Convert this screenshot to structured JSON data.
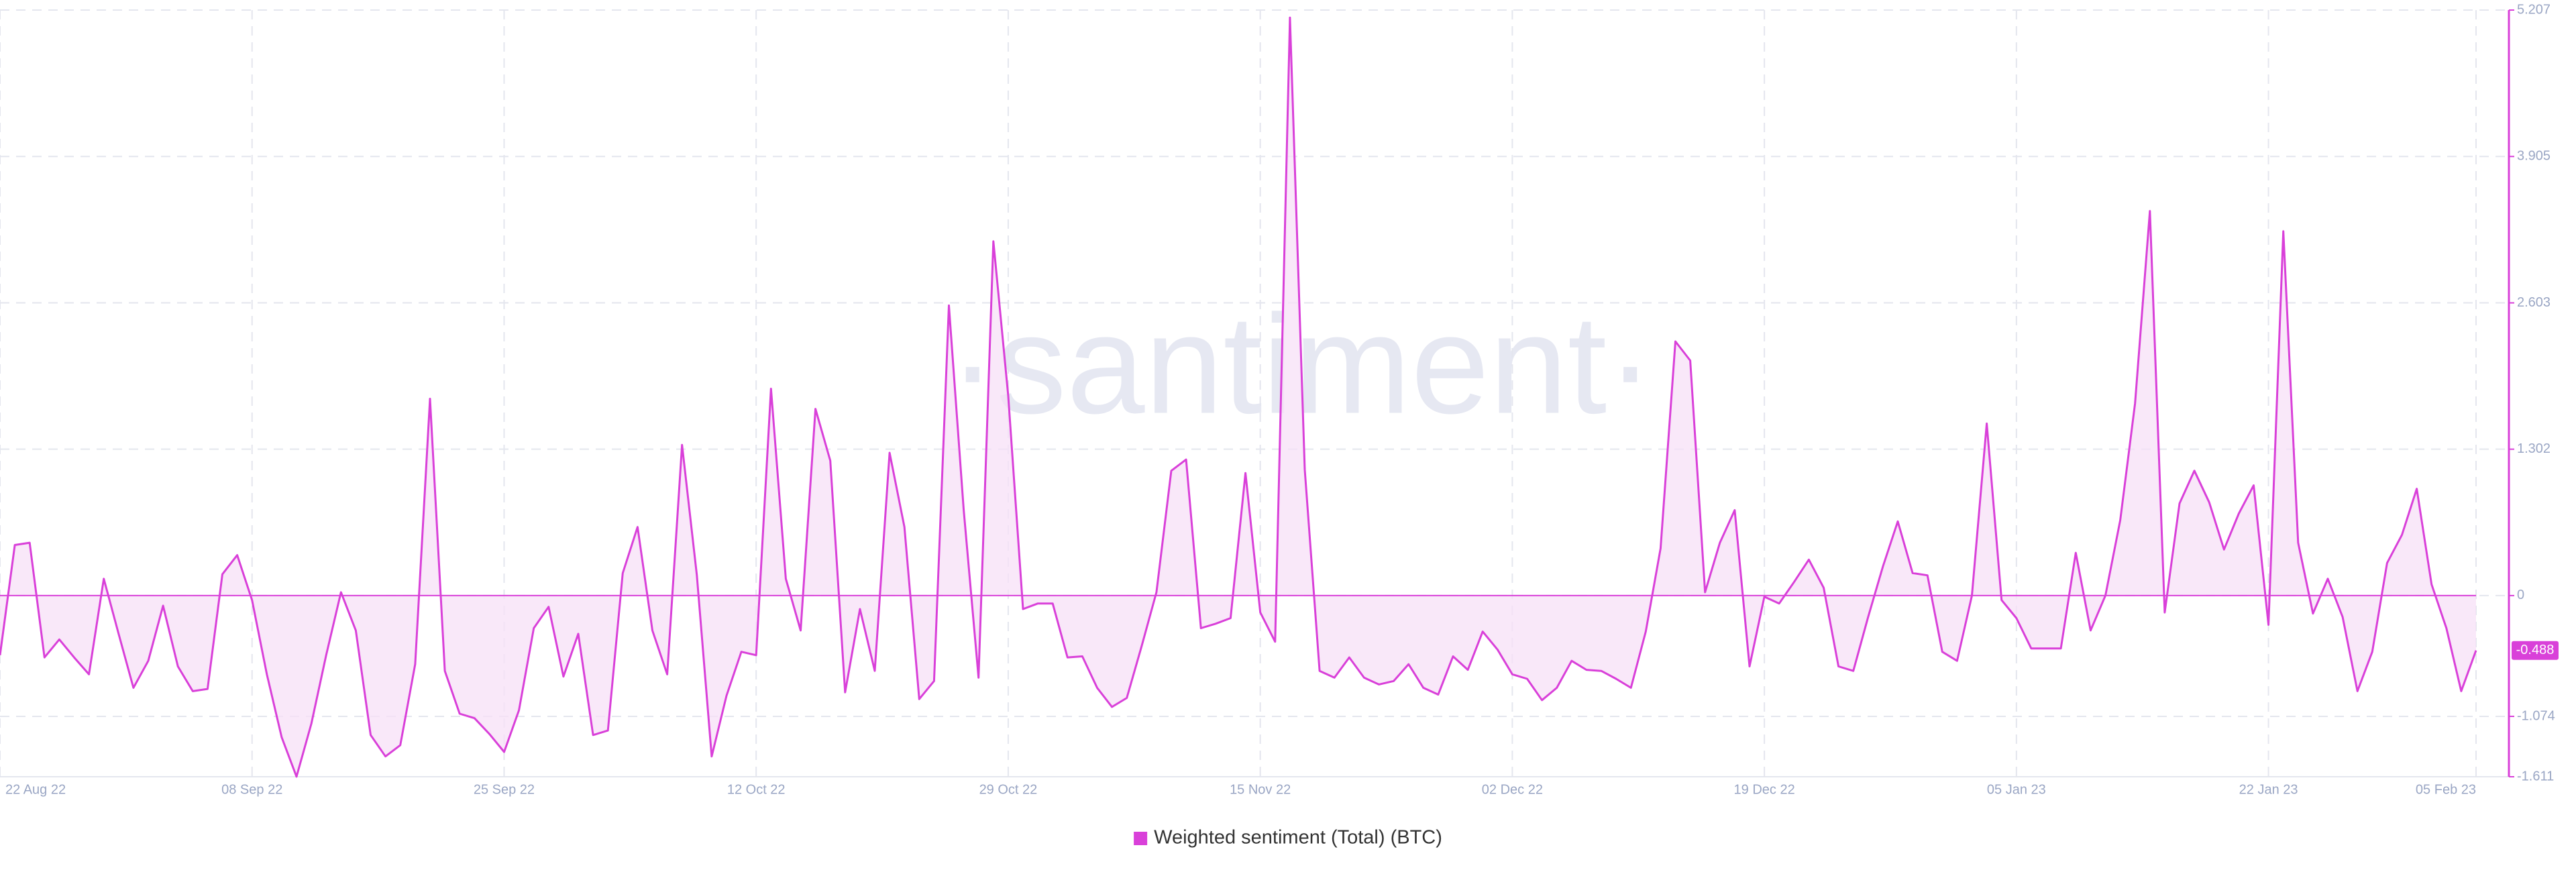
{
  "chart_data": {
    "type": "line",
    "watermark": "·santiment·",
    "legend_position": "bottom",
    "x": [
      "2022-08-22",
      "2022-08-23",
      "2022-08-24",
      "2022-08-25",
      "2022-08-26",
      "2022-08-27",
      "2022-08-28",
      "2022-08-29",
      "2022-08-30",
      "2022-08-31",
      "2022-09-01",
      "2022-09-02",
      "2022-09-03",
      "2022-09-04",
      "2022-09-05",
      "2022-09-06",
      "2022-09-07",
      "2022-09-08",
      "2022-09-09",
      "2022-09-10",
      "2022-09-11",
      "2022-09-12",
      "2022-09-13",
      "2022-09-14",
      "2022-09-15",
      "2022-09-16",
      "2022-09-17",
      "2022-09-18",
      "2022-09-19",
      "2022-09-20",
      "2022-09-21",
      "2022-09-22",
      "2022-09-23",
      "2022-09-24",
      "2022-09-25",
      "2022-09-26",
      "2022-09-27",
      "2022-09-28",
      "2022-09-29",
      "2022-09-30",
      "2022-10-01",
      "2022-10-02",
      "2022-10-03",
      "2022-10-04",
      "2022-10-05",
      "2022-10-06",
      "2022-10-07",
      "2022-10-08",
      "2022-10-09",
      "2022-10-10",
      "2022-10-11",
      "2022-10-12",
      "2022-10-13",
      "2022-10-14",
      "2022-10-15",
      "2022-10-16",
      "2022-10-17",
      "2022-10-18",
      "2022-10-19",
      "2022-10-20",
      "2022-10-21",
      "2022-10-22",
      "2022-10-23",
      "2022-10-24",
      "2022-10-25",
      "2022-10-26",
      "2022-10-27",
      "2022-10-28",
      "2022-10-29",
      "2022-10-30",
      "2022-10-31",
      "2022-11-01",
      "2022-11-02",
      "2022-11-03",
      "2022-11-04",
      "2022-11-05",
      "2022-11-06",
      "2022-11-07",
      "2022-11-08",
      "2022-11-09",
      "2022-11-10",
      "2022-11-11",
      "2022-11-12",
      "2022-11-13",
      "2022-11-14",
      "2022-11-15",
      "2022-11-16",
      "2022-11-17",
      "2022-11-18",
      "2022-11-19",
      "2022-11-20",
      "2022-11-21",
      "2022-11-22",
      "2022-11-23",
      "2022-11-24",
      "2022-11-25",
      "2022-11-26",
      "2022-11-27",
      "2022-11-28",
      "2022-11-29",
      "2022-11-30",
      "2022-12-01",
      "2022-12-02",
      "2022-12-03",
      "2022-12-04",
      "2022-12-05",
      "2022-12-06",
      "2022-12-07",
      "2022-12-08",
      "2022-12-09",
      "2022-12-10",
      "2022-12-11",
      "2022-12-12",
      "2022-12-13",
      "2022-12-14",
      "2022-12-15",
      "2022-12-16",
      "2022-12-17",
      "2022-12-18",
      "2022-12-19",
      "2022-12-20",
      "2022-12-21",
      "2022-12-22",
      "2022-12-23",
      "2022-12-24",
      "2022-12-25",
      "2022-12-26",
      "2022-12-27",
      "2022-12-28",
      "2022-12-29",
      "2022-12-30",
      "2022-12-31",
      "2023-01-01",
      "2023-01-02",
      "2023-01-03",
      "2023-01-04",
      "2023-01-05",
      "2023-01-06",
      "2023-01-07",
      "2023-01-08",
      "2023-01-09",
      "2023-01-10",
      "2023-01-11",
      "2023-01-12",
      "2023-01-13",
      "2023-01-14",
      "2023-01-15",
      "2023-01-16",
      "2023-01-17",
      "2023-01-18",
      "2023-01-19",
      "2023-01-20",
      "2023-01-21",
      "2023-01-22",
      "2023-01-23",
      "2023-01-24",
      "2023-01-25",
      "2023-01-26",
      "2023-01-27",
      "2023-01-28",
      "2023-01-29",
      "2023-01-30",
      "2023-01-31",
      "2023-02-01",
      "2023-02-02",
      "2023-02-03",
      "2023-02-04",
      "2023-02-05"
    ],
    "series": [
      {
        "name": "Weighted sentiment (Total) (BTC)",
        "color": "#d940d9",
        "fill": "#f7e0f7",
        "values": [
          -0.53,
          0.45,
          0.47,
          -0.55,
          -0.39,
          -0.55,
          -0.7,
          0.15,
          -0.34,
          -0.82,
          -0.58,
          -0.09,
          -0.63,
          -0.85,
          -0.83,
          0.19,
          0.36,
          -0.04,
          -0.7,
          -1.26,
          -1.61,
          -1.14,
          -0.53,
          0.03,
          -0.31,
          -1.24,
          -1.43,
          -1.33,
          -0.61,
          1.75,
          -0.67,
          -1.05,
          -1.09,
          -1.23,
          -1.39,
          -1.02,
          -0.29,
          -0.1,
          -0.72,
          -0.34,
          -1.24,
          -1.2,
          0.2,
          0.61,
          -0.31,
          -0.7,
          1.34,
          0.18,
          -1.43,
          -0.89,
          -0.5,
          -0.53,
          1.84,
          0.15,
          -0.31,
          1.66,
          1.2,
          -0.86,
          -0.12,
          -0.67,
          1.27,
          0.61,
          -0.92,
          -0.76,
          2.58,
          0.76,
          -0.73,
          3.15,
          1.78,
          -0.12,
          -0.07,
          -0.07,
          -0.55,
          -0.54,
          -0.82,
          -0.99,
          -0.91,
          -0.45,
          0.03,
          1.11,
          1.21,
          -0.29,
          -0.25,
          -0.2,
          1.09,
          -0.15,
          -0.41,
          5.14,
          1.12,
          -0.67,
          -0.73,
          -0.55,
          -0.73,
          -0.79,
          -0.76,
          -0.61,
          -0.82,
          -0.88,
          -0.54,
          -0.66,
          -0.32,
          -0.48,
          -0.7,
          -0.74,
          -0.93,
          -0.82,
          -0.58,
          -0.66,
          -0.67,
          -0.74,
          -0.82,
          -0.32,
          0.42,
          2.26,
          2.09,
          0.03,
          0.47,
          0.76,
          -0.63,
          -0.01,
          -0.07,
          0.12,
          0.32,
          0.07,
          -0.63,
          -0.67,
          -0.19,
          0.26,
          0.66,
          0.2,
          0.18,
          -0.5,
          -0.58,
          0,
          1.53,
          -0.04,
          -0.2,
          -0.47,
          -0.47,
          -0.47,
          0.38,
          -0.31,
          0,
          0.67,
          1.71,
          3.42,
          -0.15,
          0.82,
          1.11,
          0.83,
          0.41,
          0.73,
          0.98,
          -0.26,
          3.24,
          0.47,
          -0.16,
          0.15,
          -0.19,
          -0.85,
          -0.5,
          0.29,
          0.54,
          0.95,
          0.1,
          -0.29,
          -0.85,
          -0.488
        ]
      }
    ],
    "xlim": [
      "2022-08-22",
      "2023-02-05"
    ],
    "xticks": [
      {
        "value": "2022-08-22",
        "label": "22 Aug 22"
      },
      {
        "value": "2022-09-08",
        "label": "08 Sep 22"
      },
      {
        "value": "2022-09-25",
        "label": "25 Sep 22"
      },
      {
        "value": "2022-10-12",
        "label": "12 Oct 22"
      },
      {
        "value": "2022-10-29",
        "label": "29 Oct 22"
      },
      {
        "value": "2022-11-15",
        "label": "15 Nov 22"
      },
      {
        "value": "2022-12-02",
        "label": "02 Dec 22"
      },
      {
        "value": "2022-12-19",
        "label": "19 Dec 22"
      },
      {
        "value": "2023-01-05",
        "label": "05 Jan 23"
      },
      {
        "value": "2023-01-22",
        "label": "22 Jan 23"
      },
      {
        "value": "2023-02-05",
        "label": "05 Feb 23"
      }
    ],
    "ylim": [
      -1.611,
      5.207
    ],
    "yticks": [
      -1.611,
      -1.074,
      0,
      1.302,
      2.603,
      3.905,
      5.207
    ],
    "grid": true
  }
}
